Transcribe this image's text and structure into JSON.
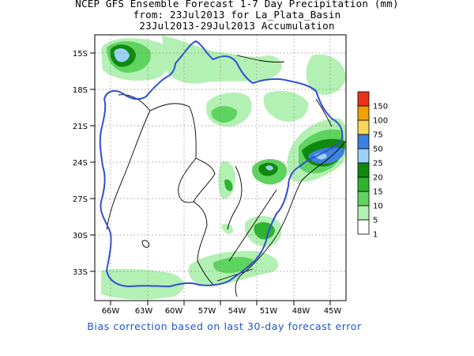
{
  "title": {
    "line1": "NCEP GFS Ensemble Forecast 1-7 Day Precipitation (mm)",
    "line2": "from: 23Jul2013   for La_Plata_Basin",
    "line3": "23Jul2013-29Jul2013 Accumulation"
  },
  "map": {
    "lat_labels": [
      "15S",
      "18S",
      "21S",
      "24S",
      "27S",
      "30S",
      "33S"
    ],
    "lon_labels": [
      "66W",
      "63W",
      "60W",
      "57W",
      "54W",
      "51W",
      "48W",
      "45W"
    ],
    "basin_outline_color": "#2f4fd6",
    "colors": {
      "light_green": "#b3f0b3",
      "mid_green": "#5fd35f",
      "green": "#2fb42f",
      "dark_green": "#0f8a0f",
      "light_blue": "#9cd2f5",
      "blue": "#3c82e0"
    }
  },
  "legend": {
    "labels": [
      "150",
      "100",
      "75",
      "50",
      "25",
      "20",
      "15",
      "10",
      "5",
      "1"
    ],
    "colors": [
      "#e8301a",
      "#f2a100",
      "#f7d65a",
      "#3c82e0",
      "#9cd2f5",
      "#0f8a0f",
      "#2fb42f",
      "#5fd35f",
      "#b3f0b3",
      "#ffffff"
    ]
  },
  "footer": {
    "note": "Bias correction based on last 30-day forecast error"
  }
}
